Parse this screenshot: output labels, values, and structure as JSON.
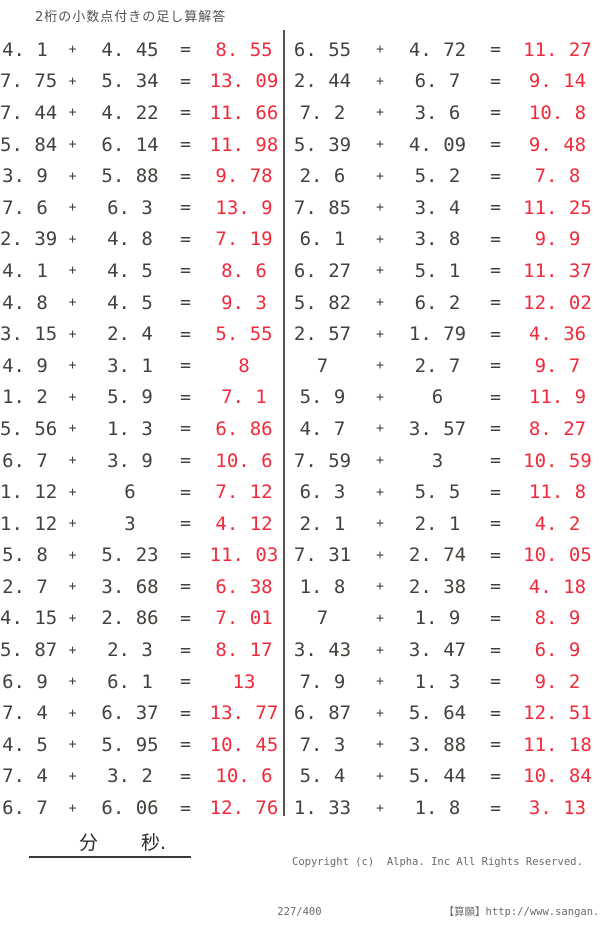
{
  "page": {
    "title": "2桁の小数点付きの足し算解答"
  },
  "colors": {
    "answer_red": "#f2293a",
    "problem_text": "#45403c"
  },
  "columns": {
    "left": [
      {
        "a": "4. 1",
        "op": "+",
        "b": "4. 45",
        "eq": "=",
        "ans": "8. 55"
      },
      {
        "a": "7. 75",
        "op": "+",
        "b": "5. 34",
        "eq": "=",
        "ans": "13. 09"
      },
      {
        "a": "7. 44",
        "op": "+",
        "b": "4. 22",
        "eq": "=",
        "ans": "11. 66"
      },
      {
        "a": "5. 84",
        "op": "+",
        "b": "6. 14",
        "eq": "=",
        "ans": "11. 98"
      },
      {
        "a": "3. 9",
        "op": "+",
        "b": "5. 88",
        "eq": "=",
        "ans": "9. 78"
      },
      {
        "a": "7. 6",
        "op": "+",
        "b": "6. 3",
        "eq": "=",
        "ans": "13. 9"
      },
      {
        "a": "2. 39",
        "op": "+",
        "b": "4. 8",
        "eq": "=",
        "ans": "7. 19"
      },
      {
        "a": "4. 1",
        "op": "+",
        "b": "4. 5",
        "eq": "=",
        "ans": "8. 6"
      },
      {
        "a": "4. 8",
        "op": "+",
        "b": "4. 5",
        "eq": "=",
        "ans": "9. 3"
      },
      {
        "a": "3. 15",
        "op": "+",
        "b": "2. 4",
        "eq": "=",
        "ans": "5. 55"
      },
      {
        "a": "4. 9",
        "op": "+",
        "b": "3. 1",
        "eq": "=",
        "ans": "8"
      },
      {
        "a": "1. 2",
        "op": "+",
        "b": "5. 9",
        "eq": "=",
        "ans": "7. 1"
      },
      {
        "a": "5. 56",
        "op": "+",
        "b": "1. 3",
        "eq": "=",
        "ans": "6. 86"
      },
      {
        "a": "6. 7",
        "op": "+",
        "b": "3. 9",
        "eq": "=",
        "ans": "10. 6"
      },
      {
        "a": "1. 12",
        "op": "+",
        "b": "6",
        "eq": "=",
        "ans": "7. 12"
      },
      {
        "a": "1. 12",
        "op": "+",
        "b": "3",
        "eq": "=",
        "ans": "4. 12"
      },
      {
        "a": "5. 8",
        "op": "+",
        "b": "5. 23",
        "eq": "=",
        "ans": "11. 03"
      },
      {
        "a": "2. 7",
        "op": "+",
        "b": "3. 68",
        "eq": "=",
        "ans": "6. 38"
      },
      {
        "a": "4. 15",
        "op": "+",
        "b": "2. 86",
        "eq": "=",
        "ans": "7. 01"
      },
      {
        "a": "5. 87",
        "op": "+",
        "b": "2. 3",
        "eq": "=",
        "ans": "8. 17"
      },
      {
        "a": "6. 9",
        "op": "+",
        "b": "6. 1",
        "eq": "=",
        "ans": "13"
      },
      {
        "a": "7. 4",
        "op": "+",
        "b": "6. 37",
        "eq": "=",
        "ans": "13. 77"
      },
      {
        "a": "4. 5",
        "op": "+",
        "b": "5. 95",
        "eq": "=",
        "ans": "10. 45"
      },
      {
        "a": "7. 4",
        "op": "+",
        "b": "3. 2",
        "eq": "=",
        "ans": "10. 6"
      },
      {
        "a": "6. 7",
        "op": "+",
        "b": "6. 06",
        "eq": "=",
        "ans": "12. 76"
      }
    ],
    "right": [
      {
        "a": "6. 55",
        "op": "+",
        "b": "4. 72",
        "eq": "=",
        "ans": "11. 27"
      },
      {
        "a": "2. 44",
        "op": "+",
        "b": "6. 7",
        "eq": "=",
        "ans": "9. 14"
      },
      {
        "a": "7. 2",
        "op": "+",
        "b": "3. 6",
        "eq": "=",
        "ans": "10. 8"
      },
      {
        "a": "5. 39",
        "op": "+",
        "b": "4. 09",
        "eq": "=",
        "ans": "9. 48"
      },
      {
        "a": "2. 6",
        "op": "+",
        "b": "5. 2",
        "eq": "=",
        "ans": "7. 8"
      },
      {
        "a": "7. 85",
        "op": "+",
        "b": "3. 4",
        "eq": "=",
        "ans": "11. 25"
      },
      {
        "a": "6. 1",
        "op": "+",
        "b": "3. 8",
        "eq": "=",
        "ans": "9. 9"
      },
      {
        "a": "6. 27",
        "op": "+",
        "b": "5. 1",
        "eq": "=",
        "ans": "11. 37"
      },
      {
        "a": "5. 82",
        "op": "+",
        "b": "6. 2",
        "eq": "=",
        "ans": "12. 02"
      },
      {
        "a": "2. 57",
        "op": "+",
        "b": "1. 79",
        "eq": "=",
        "ans": "4. 36"
      },
      {
        "a": "7",
        "op": "+",
        "b": "2. 7",
        "eq": "=",
        "ans": "9. 7"
      },
      {
        "a": "5. 9",
        "op": "+",
        "b": "6",
        "eq": "=",
        "ans": "11. 9"
      },
      {
        "a": "4. 7",
        "op": "+",
        "b": "3. 57",
        "eq": "=",
        "ans": "8. 27"
      },
      {
        "a": "7. 59",
        "op": "+",
        "b": "3",
        "eq": "=",
        "ans": "10. 59"
      },
      {
        "a": "6. 3",
        "op": "+",
        "b": "5. 5",
        "eq": "=",
        "ans": "11. 8"
      },
      {
        "a": "2. 1",
        "op": "+",
        "b": "2. 1",
        "eq": "=",
        "ans": "4. 2"
      },
      {
        "a": "7. 31",
        "op": "+",
        "b": "2. 74",
        "eq": "=",
        "ans": "10. 05"
      },
      {
        "a": "1. 8",
        "op": "+",
        "b": "2. 38",
        "eq": "=",
        "ans": "4. 18"
      },
      {
        "a": "7",
        "op": "+",
        "b": "1. 9",
        "eq": "=",
        "ans": "8. 9"
      },
      {
        "a": "3. 43",
        "op": "+",
        "b": "3. 47",
        "eq": "=",
        "ans": "6. 9"
      },
      {
        "a": "7. 9",
        "op": "+",
        "b": "1. 3",
        "eq": "=",
        "ans": "9. 2"
      },
      {
        "a": "6. 87",
        "op": "+",
        "b": "5. 64",
        "eq": "=",
        "ans": "12. 51"
      },
      {
        "a": "7. 3",
        "op": "+",
        "b": "3. 88",
        "eq": "=",
        "ans": "11. 18"
      },
      {
        "a": "5. 4",
        "op": "+",
        "b": "5. 44",
        "eq": "=",
        "ans": "10. 84"
      },
      {
        "a": "1. 33",
        "op": "+",
        "b": "1. 8",
        "eq": "=",
        "ans": "3. 13"
      }
    ]
  },
  "footer": {
    "minutes_label": "分",
    "seconds_label": "秒.",
    "copyright_line1": "Copyright (c)  Alpha. Inc All Rights Reserved.",
    "page_number": "227/400",
    "site_credit": "【算願】http://www.sangan.jp/"
  }
}
